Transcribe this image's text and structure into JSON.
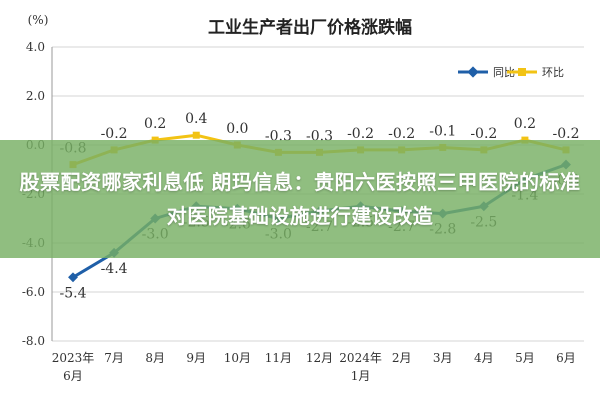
{
  "chart_data": {
    "type": "line",
    "title": "工业生产者出厂价格涨跌幅",
    "unit": "(%)",
    "categories": [
      "2023年6月",
      "7月",
      "8月",
      "9月",
      "10月",
      "11月",
      "12月",
      "2024年1月",
      "2月",
      "3月",
      "4月",
      "5月",
      "6月"
    ],
    "category_labels": [
      [
        "2023年",
        "6月"
      ],
      [
        "7月"
      ],
      [
        "8月"
      ],
      [
        "9月"
      ],
      [
        "10月"
      ],
      [
        "11月"
      ],
      [
        "12月"
      ],
      [
        "2024年",
        "1月"
      ],
      [
        "2月"
      ],
      [
        "3月"
      ],
      [
        "4月"
      ],
      [
        "5月"
      ],
      [
        "6月"
      ]
    ],
    "ylim": [
      -8.0,
      4.0
    ],
    "yticks": [
      "4.0",
      "2.0",
      "0.0",
      "-2.0",
      "-4.0",
      "-6.0",
      "-8.0"
    ],
    "ytick_values": [
      4.0,
      2.0,
      0.0,
      -2.0,
      -4.0,
      -6.0,
      -8.0
    ],
    "grid": true,
    "legend_position": "top-right",
    "series": [
      {
        "name": "同比",
        "color": "#1f5fa8",
        "marker": "diamond",
        "values": [
          -5.4,
          -4.4,
          -3.0,
          -2.5,
          -2.6,
          -3.0,
          -2.7,
          -2.5,
          -2.7,
          -2.8,
          -2.5,
          -1.4,
          -0.8
        ],
        "labels": [
          "-5.4",
          "-4.4",
          "-3.0",
          "-2.5",
          "-2.6",
          "-3.0",
          "-2.7",
          "-2.5",
          "-2.7",
          "-2.8",
          "-2.5",
          "-1.4",
          "-0.8"
        ]
      },
      {
        "name": "环比",
        "color": "#f2c314",
        "marker": "square",
        "values": [
          -0.8,
          -0.2,
          0.2,
          0.4,
          0.0,
          -0.3,
          -0.3,
          -0.2,
          -0.2,
          -0.1,
          -0.2,
          0.2,
          -0.2
        ],
        "labels": [
          "-0.8",
          "-0.2",
          "0.2",
          "0.4",
          "0.0",
          "-0.3",
          "-0.3",
          "-0.2",
          "-0.2",
          "-0.1",
          "-0.2",
          "0.2",
          "-0.2"
        ]
      }
    ]
  },
  "overlay": {
    "headline": "股票配资哪家利息低 朗玛信息：贵阳六医按照三甲医院的标准对医院基础设施进行建设改造"
  }
}
